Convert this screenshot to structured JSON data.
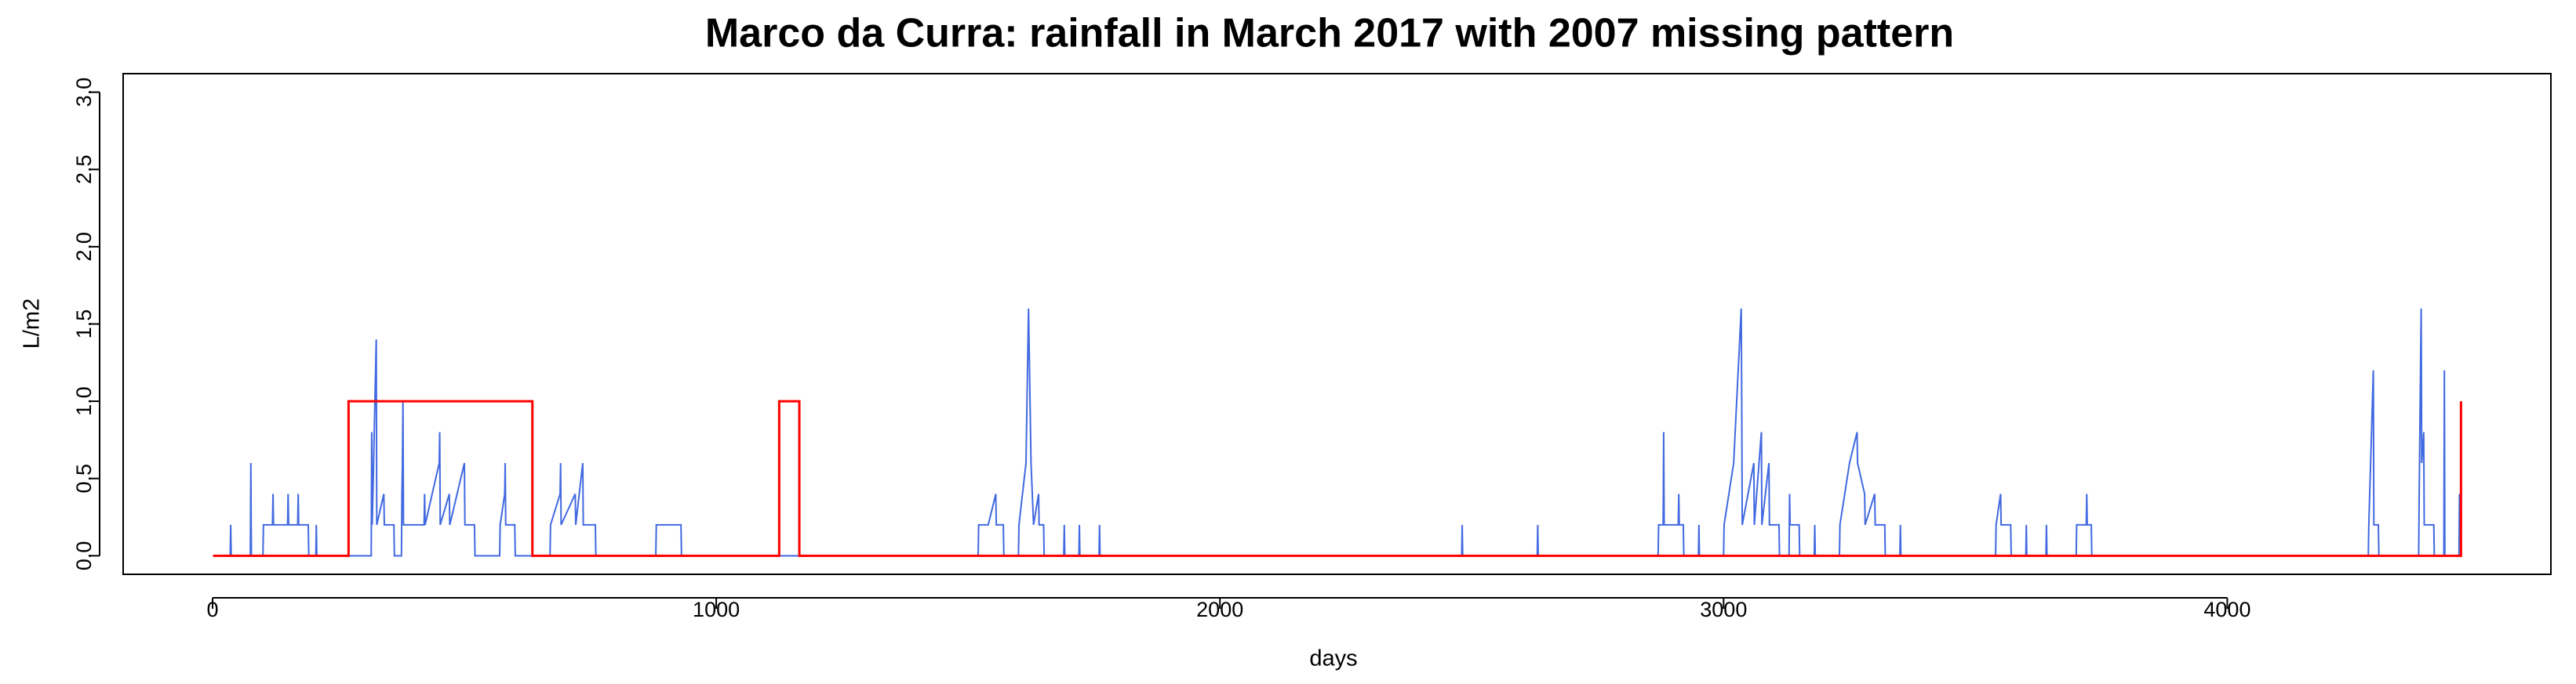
{
  "chart_data": {
    "type": "line",
    "title": "Marco da Curra: rainfall in March 2017 with 2007 missing pattern",
    "x_label": "days",
    "y_label": "L/m2",
    "xlim": [
      -177.52,
      4642.52
    ],
    "ylim": [
      -0.12,
      3.12
    ],
    "xticks": [
      0,
      1000,
      2000,
      3000,
      4000
    ],
    "yticks": [
      {
        "value": 0,
        "label": "0.0"
      },
      0.5,
      {
        "value": 1,
        "label": "1.0"
      },
      1.5,
      {
        "value": 2,
        "label": "2.0"
      },
      2.5,
      {
        "value": 3,
        "label": "3.0"
      }
    ],
    "grid": false,
    "series": [
      {
        "color": "#4169e1",
        "x": [
          1,
          35,
          36,
          37,
          75,
          76,
          77,
          100,
          101,
          119,
          120,
          121,
          149,
          150,
          151,
          169,
          170,
          171,
          190,
          191,
          205,
          206,
          207,
          315,
          316,
          317,
          325,
          326,
          340,
          341,
          360,
          361,
          375,
          376,
          377,
          378,
          379,
          420,
          421,
          422,
          450,
          451,
          452,
          470,
          471,
          500,
          501,
          520,
          521,
          570,
          571,
          580,
          581,
          582,
          600,
          601,
          670,
          671,
          690,
          691,
          692,
          720,
          721,
          735,
          736,
          760,
          761,
          880,
          881,
          930,
          931,
          1520,
          1521,
          1540,
          1555,
          1556,
          1570,
          1571,
          1600,
          1601,
          1615,
          1620,
          1625,
          1630,
          1640,
          1641,
          1650,
          1651,
          1690,
          1691,
          1692,
          1720,
          1721,
          1722,
          1760,
          1761,
          1762,
          2480,
          2481,
          2482,
          2630,
          2631,
          2632,
          2870,
          2871,
          2880,
          2881,
          2882,
          2910,
          2911,
          2912,
          2920,
          2921,
          2950,
          2951,
          2952,
          3000,
          3001,
          3020,
          3035,
          3036,
          3037,
          3060,
          3061,
          3075,
          3076,
          3090,
          3091,
          3110,
          3111,
          3130,
          3131,
          3132,
          3150,
          3151,
          3180,
          3181,
          3182,
          3230,
          3231,
          3250,
          3265,
          3266,
          3280,
          3281,
          3300,
          3301,
          3320,
          3321,
          3350,
          3351,
          3352,
          3540,
          3541,
          3550,
          3551,
          3570,
          3571,
          3600,
          3601,
          3602,
          3640,
          3641,
          3642,
          3700,
          3701,
          3720,
          3721,
          3722,
          3730,
          3731,
          4280,
          4281,
          4290,
          4291,
          4300,
          4301,
          4380,
          4381,
          4385,
          4386,
          4390,
          4391,
          4410,
          4411,
          4430,
          4431,
          4432,
          4460,
          4461,
          4464
        ],
        "values": [
          0,
          0,
          0.2,
          0,
          0,
          0.6,
          0,
          0,
          0.2,
          0.2,
          0.4,
          0.2,
          0.2,
          0.4,
          0.2,
          0.2,
          0.4,
          0.2,
          0.2,
          0,
          0,
          0.2,
          0,
          0,
          0.8,
          0.2,
          1.4,
          0.2,
          0.4,
          0.2,
          0.2,
          0,
          0,
          0.4,
          0.6,
          1.0,
          0.2,
          0.2,
          0.4,
          0.2,
          0.6,
          0.8,
          0.2,
          0.4,
          0.2,
          0.6,
          0.2,
          0.2,
          0,
          0,
          0.2,
          0.4,
          0.6,
          0.2,
          0.2,
          0,
          0,
          0.2,
          0.4,
          0.6,
          0.2,
          0.4,
          0.2,
          0.6,
          0.2,
          0.2,
          0,
          0,
          0.2,
          0.2,
          0,
          0,
          0.2,
          0.2,
          0.4,
          0.2,
          0.2,
          0,
          0,
          0.2,
          0.6,
          1.6,
          0.6,
          0.2,
          0.4,
          0.2,
          0.2,
          0,
          0,
          0.2,
          0,
          0,
          0.2,
          0,
          0,
          0.2,
          0,
          0,
          0.2,
          0,
          0,
          0.2,
          0,
          0,
          0.2,
          0.2,
          0.8,
          0.2,
          0.2,
          0.4,
          0.2,
          0.2,
          0,
          0,
          0.2,
          0,
          0,
          0.2,
          0.6,
          1.6,
          1.0,
          0.2,
          0.6,
          0.2,
          0.8,
          0.2,
          0.6,
          0.2,
          0.2,
          0,
          0,
          0.4,
          0.2,
          0.2,
          0,
          0,
          0.2,
          0,
          0,
          0.2,
          0.6,
          0.8,
          0.6,
          0.4,
          0.2,
          0.4,
          0.2,
          0.2,
          0,
          0,
          0.2,
          0,
          0,
          0.2,
          0.4,
          0.2,
          0.2,
          0,
          0,
          0.2,
          0,
          0,
          0.2,
          0,
          0,
          0.2,
          0.2,
          0.4,
          0.2,
          0.2,
          0,
          0,
          0.2,
          1.2,
          0.2,
          0.2,
          0,
          0,
          0.4,
          1.6,
          0.6,
          0.8,
          0.2,
          0.2,
          0,
          0,
          1.2,
          0,
          0,
          0.4,
          0
        ]
      },
      {
        "color": "#ff0000",
        "x": [
          1,
          270,
          270,
          635,
          635,
          1125,
          1125,
          1165,
          1165,
          4464,
          4464
        ],
        "values": [
          0,
          0,
          1,
          1,
          0,
          0,
          1,
          1,
          0,
          0,
          1
        ]
      }
    ]
  }
}
